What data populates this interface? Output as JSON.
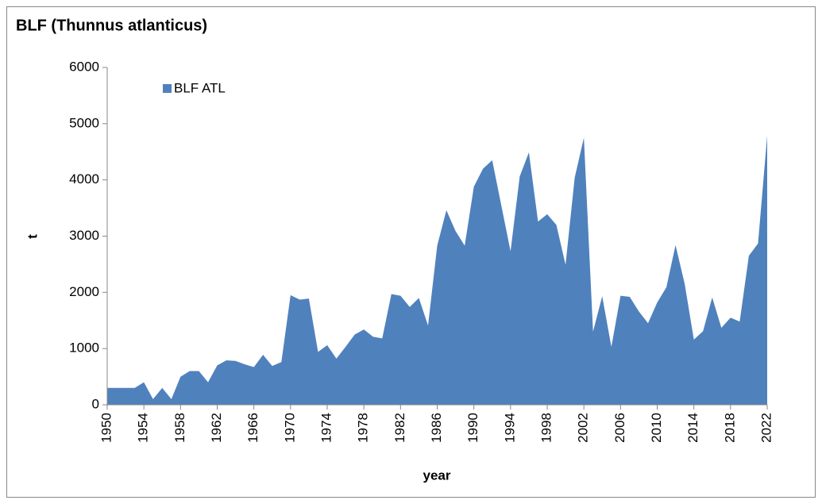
{
  "chart_data": {
    "type": "area",
    "title": "BLF (Thunnus atlanticus)",
    "xlabel": "year",
    "ylabel": "t",
    "x": [
      1950,
      1951,
      1952,
      1953,
      1954,
      1955,
      1956,
      1957,
      1958,
      1959,
      1960,
      1961,
      1962,
      1963,
      1964,
      1965,
      1966,
      1967,
      1968,
      1969,
      1970,
      1971,
      1972,
      1973,
      1974,
      1975,
      1976,
      1977,
      1978,
      1979,
      1980,
      1981,
      1982,
      1983,
      1984,
      1985,
      1986,
      1987,
      1988,
      1989,
      1990,
      1991,
      1992,
      1993,
      1994,
      1995,
      1996,
      1997,
      1998,
      1999,
      2000,
      2001,
      2002,
      2003,
      2004,
      2005,
      2006,
      2007,
      2008,
      2009,
      2010,
      2011,
      2012,
      2013,
      2014,
      2015,
      2016,
      2017,
      2018,
      2019,
      2020,
      2021,
      2022
    ],
    "series": [
      {
        "name": "BLF ATL",
        "color": "#4f81bd",
        "values": [
          300,
          300,
          300,
          300,
          400,
          100,
          300,
          100,
          500,
          600,
          600,
          400,
          700,
          790,
          780,
          720,
          670,
          890,
          690,
          760,
          1950,
          1870,
          1890,
          940,
          1060,
          820,
          1030,
          1250,
          1340,
          1210,
          1180,
          1970,
          1940,
          1740,
          1900,
          1410,
          2830,
          3460,
          3090,
          2830,
          3880,
          4200,
          4350,
          3540,
          2730,
          4060,
          4490,
          3260,
          3390,
          3200,
          2490,
          4040,
          4750,
          1300,
          1930,
          1030,
          1940,
          1920,
          1660,
          1450,
          1820,
          2090,
          2840,
          2150,
          1160,
          1310,
          1910,
          1370,
          1550,
          1480,
          2650,
          2870,
          4790
        ]
      }
    ],
    "xlim": [
      1950,
      2022
    ],
    "xticks": [
      1950,
      1954,
      1958,
      1962,
      1966,
      1970,
      1974,
      1978,
      1982,
      1986,
      1990,
      1994,
      1998,
      2002,
      2006,
      2010,
      2014,
      2018,
      2022
    ],
    "ylim": [
      0,
      6000
    ],
    "yticks": [
      0,
      1000,
      2000,
      3000,
      4000,
      5000,
      6000
    ],
    "legend": "upper left"
  }
}
